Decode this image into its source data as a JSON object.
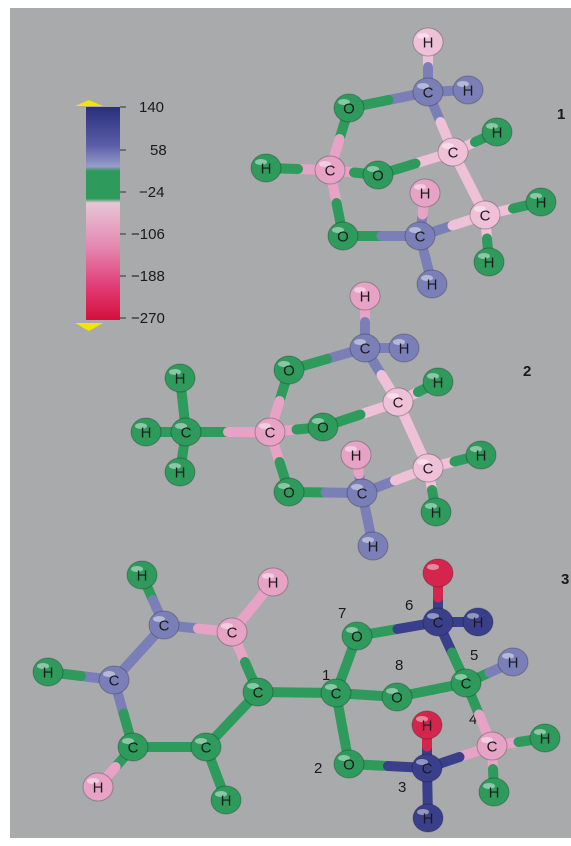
{
  "colors": {
    "background": "#a9aaab",
    "blue": "#7b7fb8",
    "darkblue": "#3a3f8c",
    "green": "#2e9a5c",
    "pink": "#e7a3c6",
    "lightpink": "#efc1d8",
    "red": "#d4264c",
    "arrow": "#f2e500"
  },
  "scale_bar": {
    "tick_labels": [
      "140",
      "58",
      "−24",
      "−106",
      "−188",
      "−270"
    ]
  },
  "molecules": [
    {
      "label": "1",
      "atoms": [
        {
          "id": "H1",
          "el": "H",
          "c": "lightpink"
        },
        {
          "id": "C1",
          "el": "C",
          "c": "blue"
        },
        {
          "id": "H2",
          "el": "H",
          "c": "blue"
        },
        {
          "id": "O1",
          "el": "O",
          "c": "green"
        },
        {
          "id": "C2",
          "el": "C",
          "c": "lightpink"
        },
        {
          "id": "H3",
          "el": "H",
          "c": "green"
        },
        {
          "id": "H4",
          "el": "H",
          "c": "green"
        },
        {
          "id": "C3",
          "el": "C",
          "c": "pink"
        },
        {
          "id": "O2",
          "el": "O",
          "c": "green"
        },
        {
          "id": "H5",
          "el": "H",
          "c": "pink"
        },
        {
          "id": "O3",
          "el": "O",
          "c": "green"
        },
        {
          "id": "C4",
          "el": "C",
          "c": "blue"
        },
        {
          "id": "C5",
          "el": "C",
          "c": "lightpink"
        },
        {
          "id": "H6",
          "el": "H",
          "c": "green"
        },
        {
          "id": "H7",
          "el": "H",
          "c": "blue"
        },
        {
          "id": "H8",
          "el": "H",
          "c": "green"
        }
      ],
      "bonds": [
        [
          "H1",
          "C1"
        ],
        [
          "C1",
          "H2"
        ],
        [
          "C1",
          "O1"
        ],
        [
          "C1",
          "C2"
        ],
        [
          "C2",
          "H4"
        ],
        [
          "C2",
          "O2"
        ],
        [
          "C2",
          "C5"
        ],
        [
          "O1",
          "C3"
        ],
        [
          "C3",
          "H3"
        ],
        [
          "C3",
          "O2"
        ],
        [
          "C3",
          "O3"
        ],
        [
          "O3",
          "C4"
        ],
        [
          "C4",
          "H5"
        ],
        [
          "C4",
          "C5"
        ],
        [
          "C4",
          "H7"
        ],
        [
          "C5",
          "H6"
        ],
        [
          "C5",
          "H8"
        ]
      ]
    },
    {
      "label": "2",
      "atoms": [
        {
          "id": "H1",
          "el": "H",
          "c": "pink"
        },
        {
          "id": "C1",
          "el": "C",
          "c": "blue"
        },
        {
          "id": "H2",
          "el": "H",
          "c": "blue"
        },
        {
          "id": "O1",
          "el": "O",
          "c": "green"
        },
        {
          "id": "H3",
          "el": "H",
          "c": "green"
        },
        {
          "id": "C2",
          "el": "C",
          "c": "lightpink"
        },
        {
          "id": "H4",
          "el": "H",
          "c": "green"
        },
        {
          "id": "H5",
          "el": "H",
          "c": "green"
        },
        {
          "id": "C3",
          "el": "C",
          "c": "green"
        },
        {
          "id": "C4",
          "el": "C",
          "c": "pink"
        },
        {
          "id": "O2",
          "el": "O",
          "c": "green"
        },
        {
          "id": "H6",
          "el": "H",
          "c": "pink"
        },
        {
          "id": "C5",
          "el": "C",
          "c": "lightpink"
        },
        {
          "id": "H7",
          "el": "H",
          "c": "green"
        },
        {
          "id": "H8",
          "el": "H",
          "c": "green"
        },
        {
          "id": "O3",
          "el": "O",
          "c": "green"
        },
        {
          "id": "C6",
          "el": "C",
          "c": "blue"
        },
        {
          "id": "H9",
          "el": "H",
          "c": "green"
        },
        {
          "id": "H10",
          "el": "H",
          "c": "blue"
        }
      ],
      "bonds": [
        [
          "H1",
          "C1"
        ],
        [
          "C1",
          "H2"
        ],
        [
          "C1",
          "O1"
        ],
        [
          "C1",
          "C2"
        ],
        [
          "C2",
          "H4"
        ],
        [
          "C2",
          "O2"
        ],
        [
          "C2",
          "C5"
        ],
        [
          "O1",
          "C4"
        ],
        [
          "C3",
          "H3"
        ],
        [
          "C3",
          "H5"
        ],
        [
          "C3",
          "H9"
        ],
        [
          "C3",
          "C4"
        ],
        [
          "C4",
          "O2"
        ],
        [
          "C4",
          "O3"
        ],
        [
          "O3",
          "C6"
        ],
        [
          "C6",
          "H6"
        ],
        [
          "C6",
          "C5"
        ],
        [
          "C6",
          "H10"
        ],
        [
          "C5",
          "H7"
        ],
        [
          "C5",
          "H8"
        ]
      ]
    },
    {
      "label": "3",
      "numbers": [
        "7",
        "6",
        "1",
        "8",
        "5",
        "4",
        "2",
        "3"
      ],
      "atoms": [
        {
          "id": "H1",
          "el": "H",
          "c": "green"
        },
        {
          "id": "H2",
          "el": "H",
          "c": "pink"
        },
        {
          "id": "O6",
          "el": "",
          "c": "red"
        },
        {
          "id": "C1",
          "el": "C",
          "c": "blue"
        },
        {
          "id": "C2",
          "el": "C",
          "c": "pink"
        },
        {
          "id": "O7",
          "el": "O",
          "c": "green"
        },
        {
          "id": "C6",
          "el": "C",
          "c": "darkblue"
        },
        {
          "id": "H6",
          "el": "H",
          "c": "darkblue"
        },
        {
          "id": "H3",
          "el": "H",
          "c": "green"
        },
        {
          "id": "C3",
          "el": "C",
          "c": "blue"
        },
        {
          "id": "C4",
          "el": "C",
          "c": "green"
        },
        {
          "id": "C1c",
          "el": "C",
          "c": "green"
        },
        {
          "id": "O8",
          "el": "O",
          "c": "green"
        },
        {
          "id": "C5",
          "el": "C",
          "c": "green"
        },
        {
          "id": "H5",
          "el": "H",
          "c": "blue"
        },
        {
          "id": "C7",
          "el": "C",
          "c": "green"
        },
        {
          "id": "C8",
          "el": "C",
          "c": "green"
        },
        {
          "id": "O3",
          "el": "H",
          "c": "red"
        },
        {
          "id": "C4r",
          "el": "C",
          "c": "pink"
        },
        {
          "id": "H4a",
          "el": "H",
          "c": "green"
        },
        {
          "id": "H9",
          "el": "H",
          "c": "pink"
        },
        {
          "id": "O2",
          "el": "O",
          "c": "green"
        },
        {
          "id": "C3r",
          "el": "C",
          "c": "darkblue"
        },
        {
          "id": "H4b",
          "el": "H",
          "c": "green"
        },
        {
          "id": "H10",
          "el": "H",
          "c": "green"
        },
        {
          "id": "H3r",
          "el": "H",
          "c": "darkblue"
        }
      ],
      "bonds": [
        [
          "H1",
          "C1"
        ],
        [
          "C1",
          "C2"
        ],
        [
          "C1",
          "C3"
        ],
        [
          "H2",
          "C2"
        ],
        [
          "C2",
          "C4"
        ],
        [
          "C3",
          "H3"
        ],
        [
          "C3",
          "C7"
        ],
        [
          "C7",
          "C8"
        ],
        [
          "C8",
          "C4"
        ],
        [
          "C7",
          "H9"
        ],
        [
          "C8",
          "H10"
        ],
        [
          "C4",
          "C1c"
        ],
        [
          "C1c",
          "O7"
        ],
        [
          "C1c",
          "O8"
        ],
        [
          "C1c",
          "O2"
        ],
        [
          "O7",
          "C6"
        ],
        [
          "C6",
          "O6"
        ],
        [
          "C6",
          "H6"
        ],
        [
          "C6",
          "C5"
        ],
        [
          "O8",
          "C5"
        ],
        [
          "C5",
          "H5"
        ],
        [
          "C5",
          "C4r"
        ],
        [
          "C4r",
          "H4a"
        ],
        [
          "C4r",
          "H4b"
        ],
        [
          "C4r",
          "C3r"
        ],
        [
          "O2",
          "C3r"
        ],
        [
          "C3r",
          "O3"
        ],
        [
          "C3r",
          "H3r"
        ]
      ]
    }
  ]
}
